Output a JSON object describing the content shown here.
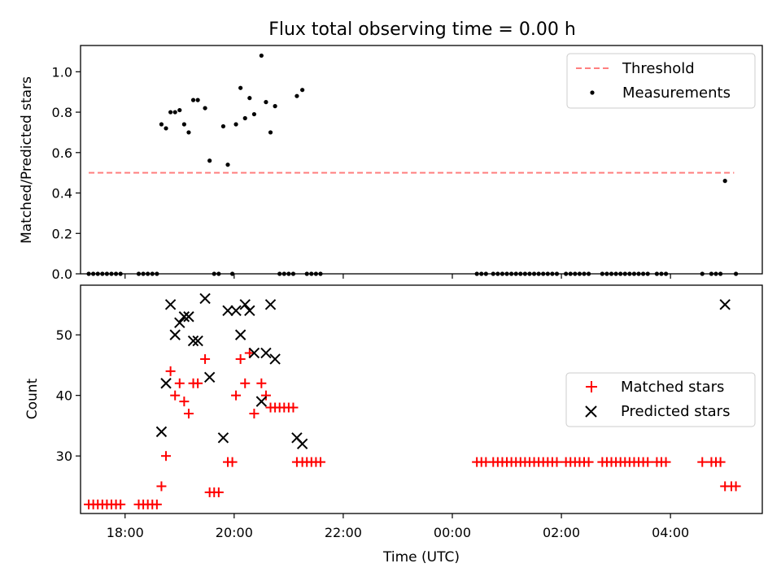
{
  "chart_data": [
    {
      "type": "scatter",
      "title": "Flux total observing time = 0.00 h",
      "xlabel": "",
      "ylabel": "Matched/Predicted stars",
      "xlim": [
        "17:11",
        "05:41"
      ],
      "ylim": [
        0.0,
        1.13
      ],
      "yticks": [
        0.0,
        0.2,
        0.4,
        0.6,
        0.8,
        1.0
      ],
      "ytick_labels": [
        "0.0",
        "0.2",
        "0.4",
        "0.6",
        "0.8",
        "1.0"
      ],
      "xticks": [
        "18:00",
        "20:00",
        "22:00",
        "00:00",
        "02:00",
        "04:00"
      ],
      "legend": {
        "position": "top-right",
        "entries": [
          "Threshold",
          "Measurements"
        ]
      },
      "threshold": {
        "name": "Threshold",
        "value": 0.5,
        "x_start": "17:20",
        "x_end": "05:10",
        "color": "#ff7f7f",
        "style": "dashed"
      },
      "series": [
        {
          "name": "Measurements",
          "color": "#000000",
          "marker": "dot",
          "points": [
            [
              "17:20",
              0.0
            ],
            [
              "17:25",
              0.0
            ],
            [
              "17:30",
              0.0
            ],
            [
              "17:35",
              0.0
            ],
            [
              "17:40",
              0.0
            ],
            [
              "17:45",
              0.0
            ],
            [
              "17:50",
              0.0
            ],
            [
              "17:55",
              0.0
            ],
            [
              "18:15",
              0.0
            ],
            [
              "18:20",
              0.0
            ],
            [
              "18:25",
              0.0
            ],
            [
              "18:30",
              0.0
            ],
            [
              "18:35",
              0.0
            ],
            [
              "18:40",
              0.74
            ],
            [
              "18:45",
              0.72
            ],
            [
              "18:50",
              0.8
            ],
            [
              "18:55",
              0.8
            ],
            [
              "19:00",
              0.81
            ],
            [
              "19:05",
              0.74
            ],
            [
              "19:10",
              0.7
            ],
            [
              "19:15",
              0.86
            ],
            [
              "19:20",
              0.86
            ],
            [
              "19:28",
              0.82
            ],
            [
              "19:33",
              0.56
            ],
            [
              "19:38",
              0.0
            ],
            [
              "19:43",
              0.0
            ],
            [
              "19:48",
              0.73
            ],
            [
              "19:53",
              0.54
            ],
            [
              "19:58",
              0.0
            ],
            [
              "20:02",
              0.74
            ],
            [
              "20:07",
              0.92
            ],
            [
              "20:12",
              0.77
            ],
            [
              "20:17",
              0.87
            ],
            [
              "20:22",
              0.79
            ],
            [
              "20:30",
              1.08
            ],
            [
              "20:35",
              0.85
            ],
            [
              "20:40",
              0.7
            ],
            [
              "20:45",
              0.83
            ],
            [
              "20:50",
              0.0
            ],
            [
              "20:55",
              0.0
            ],
            [
              "21:00",
              0.0
            ],
            [
              "21:05",
              0.0
            ],
            [
              "21:09",
              0.88
            ],
            [
              "21:15",
              0.91
            ],
            [
              "21:20",
              0.0
            ],
            [
              "21:25",
              0.0
            ],
            [
              "21:30",
              0.0
            ],
            [
              "21:35",
              0.0
            ],
            [
              "00:27",
              0.0
            ],
            [
              "00:32",
              0.0
            ],
            [
              "00:37",
              0.0
            ],
            [
              "00:45",
              0.0
            ],
            [
              "00:50",
              0.0
            ],
            [
              "00:55",
              0.0
            ],
            [
              "01:00",
              0.0
            ],
            [
              "01:05",
              0.0
            ],
            [
              "01:10",
              0.0
            ],
            [
              "01:15",
              0.0
            ],
            [
              "01:20",
              0.0
            ],
            [
              "01:25",
              0.0
            ],
            [
              "01:30",
              0.0
            ],
            [
              "01:35",
              0.0
            ],
            [
              "01:40",
              0.0
            ],
            [
              "01:45",
              0.0
            ],
            [
              "01:50",
              0.0
            ],
            [
              "01:55",
              0.0
            ],
            [
              "02:05",
              0.0
            ],
            [
              "02:10",
              0.0
            ],
            [
              "02:15",
              0.0
            ],
            [
              "02:20",
              0.0
            ],
            [
              "02:25",
              0.0
            ],
            [
              "02:30",
              0.0
            ],
            [
              "02:45",
              0.0
            ],
            [
              "02:50",
              0.0
            ],
            [
              "02:55",
              0.0
            ],
            [
              "03:00",
              0.0
            ],
            [
              "03:05",
              0.0
            ],
            [
              "03:10",
              0.0
            ],
            [
              "03:15",
              0.0
            ],
            [
              "03:20",
              0.0
            ],
            [
              "03:25",
              0.0
            ],
            [
              "03:30",
              0.0
            ],
            [
              "03:35",
              0.0
            ],
            [
              "03:45",
              0.0
            ],
            [
              "03:50",
              0.0
            ],
            [
              "03:55",
              0.0
            ],
            [
              "04:35",
              0.0
            ],
            [
              "04:45",
              0.0
            ],
            [
              "04:50",
              0.0
            ],
            [
              "04:55",
              0.0
            ],
            [
              "05:00",
              0.46
            ],
            [
              "05:12",
              0.0
            ]
          ]
        }
      ]
    },
    {
      "type": "scatter",
      "title": "",
      "xlabel": "Time (UTC)",
      "ylabel": "Count",
      "xlim": [
        "17:11",
        "05:41"
      ],
      "ylim": [
        20.5,
        58.2
      ],
      "yticks": [
        30,
        40,
        50
      ],
      "ytick_labels": [
        "30",
        "40",
        "50"
      ],
      "xticks": [
        "18:00",
        "20:00",
        "22:00",
        "00:00",
        "02:00",
        "04:00"
      ],
      "xtick_labels": [
        "18:00",
        "20:00",
        "22:00",
        "00:00",
        "02:00",
        "04:00"
      ],
      "legend": {
        "position": "center-right",
        "entries": [
          "Matched stars",
          "Predicted stars"
        ]
      },
      "series": [
        {
          "name": "Matched stars",
          "color": "#ff0000",
          "marker": "plus",
          "points": [
            [
              "17:20",
              22
            ],
            [
              "17:25",
              22
            ],
            [
              "17:30",
              22
            ],
            [
              "17:35",
              22
            ],
            [
              "17:40",
              22
            ],
            [
              "17:45",
              22
            ],
            [
              "17:50",
              22
            ],
            [
              "17:55",
              22
            ],
            [
              "18:15",
              22
            ],
            [
              "18:20",
              22
            ],
            [
              "18:25",
              22
            ],
            [
              "18:30",
              22
            ],
            [
              "18:35",
              22
            ],
            [
              "18:40",
              25
            ],
            [
              "18:45",
              30
            ],
            [
              "18:50",
              44
            ],
            [
              "18:55",
              40
            ],
            [
              "19:00",
              42
            ],
            [
              "19:05",
              39
            ],
            [
              "19:10",
              37
            ],
            [
              "19:15",
              42
            ],
            [
              "19:20",
              42
            ],
            [
              "19:28",
              46
            ],
            [
              "19:33",
              24
            ],
            [
              "19:38",
              24
            ],
            [
              "19:43",
              24
            ],
            [
              "19:53",
              29
            ],
            [
              "19:58",
              29
            ],
            [
              "20:02",
              40
            ],
            [
              "20:07",
              46
            ],
            [
              "20:12",
              42
            ],
            [
              "20:17",
              47
            ],
            [
              "20:22",
              37
            ],
            [
              "20:30",
              42
            ],
            [
              "20:35",
              40
            ],
            [
              "20:40",
              38
            ],
            [
              "20:45",
              38
            ],
            [
              "20:50",
              38
            ],
            [
              "20:55",
              38
            ],
            [
              "21:00",
              38
            ],
            [
              "21:05",
              38
            ],
            [
              "21:09",
              29
            ],
            [
              "21:15",
              29
            ],
            [
              "21:20",
              29
            ],
            [
              "21:25",
              29
            ],
            [
              "21:30",
              29
            ],
            [
              "21:35",
              29
            ],
            [
              "00:27",
              29
            ],
            [
              "00:32",
              29
            ],
            [
              "00:37",
              29
            ],
            [
              "00:45",
              29
            ],
            [
              "00:50",
              29
            ],
            [
              "00:55",
              29
            ],
            [
              "01:00",
              29
            ],
            [
              "01:05",
              29
            ],
            [
              "01:10",
              29
            ],
            [
              "01:15",
              29
            ],
            [
              "01:20",
              29
            ],
            [
              "01:25",
              29
            ],
            [
              "01:30",
              29
            ],
            [
              "01:35",
              29
            ],
            [
              "01:40",
              29
            ],
            [
              "01:45",
              29
            ],
            [
              "01:50",
              29
            ],
            [
              "01:55",
              29
            ],
            [
              "02:05",
              29
            ],
            [
              "02:10",
              29
            ],
            [
              "02:15",
              29
            ],
            [
              "02:20",
              29
            ],
            [
              "02:25",
              29
            ],
            [
              "02:30",
              29
            ],
            [
              "02:45",
              29
            ],
            [
              "02:50",
              29
            ],
            [
              "02:55",
              29
            ],
            [
              "03:00",
              29
            ],
            [
              "03:05",
              29
            ],
            [
              "03:10",
              29
            ],
            [
              "03:15",
              29
            ],
            [
              "03:20",
              29
            ],
            [
              "03:25",
              29
            ],
            [
              "03:30",
              29
            ],
            [
              "03:35",
              29
            ],
            [
              "03:45",
              29
            ],
            [
              "03:50",
              29
            ],
            [
              "03:55",
              29
            ],
            [
              "04:35",
              29
            ],
            [
              "04:45",
              29
            ],
            [
              "04:50",
              29
            ],
            [
              "04:55",
              29
            ],
            [
              "05:00",
              25
            ],
            [
              "05:07",
              25
            ],
            [
              "05:12",
              25
            ]
          ]
        },
        {
          "name": "Predicted stars",
          "color": "#000000",
          "marker": "x",
          "points": [
            [
              "18:40",
              34
            ],
            [
              "18:45",
              42
            ],
            [
              "18:50",
              55
            ],
            [
              "18:55",
              50
            ],
            [
              "19:00",
              52
            ],
            [
              "19:05",
              53
            ],
            [
              "19:10",
              53
            ],
            [
              "19:15",
              49
            ],
            [
              "19:20",
              49
            ],
            [
              "19:28",
              56
            ],
            [
              "19:33",
              43
            ],
            [
              "19:48",
              33
            ],
            [
              "19:53",
              54
            ],
            [
              "20:02",
              54
            ],
            [
              "20:07",
              50
            ],
            [
              "20:12",
              55
            ],
            [
              "20:17",
              54
            ],
            [
              "20:22",
              47
            ],
            [
              "20:30",
              39
            ],
            [
              "20:35",
              47
            ],
            [
              "20:40",
              55
            ],
            [
              "20:45",
              46
            ],
            [
              "21:09",
              33
            ],
            [
              "21:15",
              32
            ],
            [
              "05:00",
              55
            ]
          ]
        }
      ]
    }
  ]
}
